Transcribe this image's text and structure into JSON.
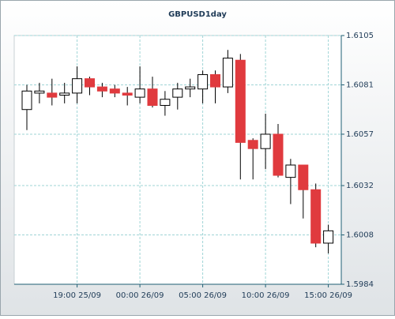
{
  "chart_data": {
    "type": "candlestick",
    "title": "GBPUSD1day",
    "categories": [
      null,
      null,
      null,
      null,
      "19:00 25/09",
      null,
      null,
      null,
      null,
      "00:00 26/09",
      null,
      null,
      null,
      null,
      "05:00 26/09",
      null,
      null,
      null,
      null,
      "10:00 26/09",
      null,
      null,
      null,
      null,
      "15:00 26/09"
    ],
    "open": [
      1.6069,
      1.6077,
      1.6077,
      1.6076,
      1.6077,
      1.6084,
      1.608,
      1.6079,
      1.6077,
      1.6075,
      1.6079,
      1.6071,
      1.6075,
      1.6079,
      1.6079,
      1.6086,
      1.608,
      1.6093,
      1.6054,
      1.605,
      1.6057,
      1.6036,
      1.6042,
      1.603,
      1.6004
    ],
    "high": [
      1.6081,
      1.6082,
      1.6084,
      1.6082,
      1.609,
      1.6085,
      1.6082,
      1.6081,
      1.608,
      1.609,
      1.6085,
      1.6078,
      1.6082,
      1.6084,
      1.6088,
      1.6088,
      1.6098,
      1.6096,
      1.6055,
      1.6067,
      1.6062,
      1.6045,
      1.6042,
      1.6033,
      1.6013
    ],
    "low": [
      1.6059,
      1.6072,
      1.6071,
      1.6072,
      1.6072,
      1.6076,
      1.6075,
      1.6075,
      1.6071,
      1.6072,
      1.607,
      1.6066,
      1.6069,
      1.6075,
      1.6072,
      1.6072,
      1.6077,
      1.6035,
      1.6035,
      1.604,
      1.6036,
      1.6023,
      1.6016,
      1.6002,
      1.5999
    ],
    "close": [
      1.6078,
      1.6078,
      1.6075,
      1.6077,
      1.6084,
      1.608,
      1.6078,
      1.6077,
      1.6076,
      1.6079,
      1.6071,
      1.6074,
      1.6079,
      1.608,
      1.6086,
      1.608,
      1.6094,
      1.6053,
      1.605,
      1.6057,
      1.6037,
      1.6042,
      1.603,
      1.6004,
      1.601
    ],
    "up_color": "#ffffff",
    "down_color": "#e03a3e",
    "ylim": [
      1.5984,
      1.6105
    ],
    "yticks": [
      1.5984,
      1.6008,
      1.6032,
      1.6057,
      1.6081,
      1.6105
    ],
    "grid": true
  }
}
